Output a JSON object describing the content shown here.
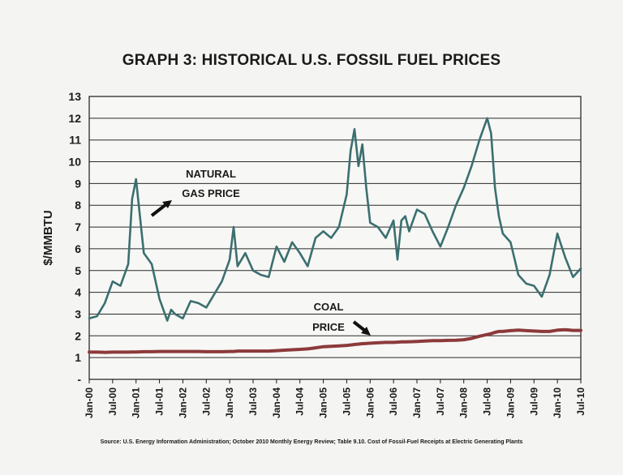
{
  "chart_data": {
    "type": "line",
    "title": "GRAPH 3: HISTORICAL U.S. FOSSIL FUEL PRICES",
    "ylabel": "$/MMBTU",
    "xlabel": "",
    "ylim": [
      0,
      13
    ],
    "y_tick_labels": [
      "-",
      "1",
      "2",
      "3",
      "4",
      "5",
      "6",
      "7",
      "8",
      "9",
      "10",
      "11",
      "12",
      "13"
    ],
    "x_tick_labels": [
      "Jan-00",
      "Jul-00",
      "Jan-01",
      "Jul-01",
      "Jan-02",
      "Jul-02",
      "Jan-03",
      "Jul-03",
      "Jan-04",
      "Jul-04",
      "Jan-05",
      "Jul-05",
      "Jan-06",
      "Jul-06",
      "Jan-07",
      "Jul-07",
      "Jan-08",
      "Jul-08",
      "Jan-09",
      "Jul-09",
      "Jan-10",
      "Jul-10"
    ],
    "grid": true,
    "x": [
      "Jan-00",
      "Mar-00",
      "May-00",
      "Jul-00",
      "Sep-00",
      "Nov-00",
      "Dec-00",
      "Jan-01",
      "Mar-01",
      "May-01",
      "Jul-01",
      "Sep-01",
      "Oct-01",
      "Nov-01",
      "Jan-02",
      "Mar-02",
      "May-02",
      "Jul-02",
      "Sep-02",
      "Nov-02",
      "Jan-03",
      "Feb-03",
      "Mar-03",
      "May-03",
      "Jul-03",
      "Sep-03",
      "Nov-03",
      "Jan-04",
      "Mar-04",
      "May-04",
      "Jul-04",
      "Sep-04",
      "Nov-04",
      "Jan-05",
      "Mar-05",
      "May-05",
      "Jul-05",
      "Aug-05",
      "Sep-05",
      "Oct-05",
      "Nov-05",
      "Dec-05",
      "Jan-06",
      "Mar-06",
      "May-06",
      "Jul-06",
      "Aug-06",
      "Sep-06",
      "Oct-06",
      "Nov-06",
      "Jan-07",
      "Mar-07",
      "May-07",
      "Jul-07",
      "Sep-07",
      "Nov-07",
      "Jan-08",
      "Mar-08",
      "May-08",
      "Jul-08",
      "Aug-08",
      "Sep-08",
      "Oct-08",
      "Nov-08",
      "Jan-09",
      "Mar-09",
      "May-09",
      "Jul-09",
      "Sep-09",
      "Nov-09",
      "Jan-10",
      "Mar-10",
      "May-10",
      "Jul-10"
    ],
    "series": [
      {
        "name": "NATURAL GAS PRICE",
        "color": "#3b6f6f",
        "values": [
          2.8,
          2.9,
          3.5,
          4.5,
          4.3,
          5.3,
          8.3,
          9.2,
          5.8,
          5.3,
          3.7,
          2.7,
          3.2,
          3.0,
          2.8,
          3.6,
          3.5,
          3.3,
          3.9,
          4.5,
          5.5,
          7.0,
          5.2,
          5.8,
          5.0,
          4.8,
          4.7,
          6.1,
          5.4,
          6.3,
          5.8,
          5.2,
          6.5,
          6.8,
          6.5,
          7.0,
          8.5,
          10.5,
          11.5,
          9.8,
          10.8,
          8.8,
          7.2,
          7.0,
          6.5,
          7.3,
          5.5,
          7.3,
          7.5,
          6.8,
          7.8,
          7.6,
          6.8,
          6.1,
          7.0,
          8.0,
          8.8,
          9.8,
          11.0,
          12.0,
          11.3,
          8.8,
          7.5,
          6.7,
          6.3,
          4.8,
          4.4,
          4.3,
          3.8,
          4.8,
          6.7,
          5.6,
          4.7,
          5.1
        ]
      },
      {
        "name": "COAL PRICE",
        "color": "#8c3a3a",
        "values": [
          1.25,
          1.25,
          1.24,
          1.25,
          1.25,
          1.25,
          1.26,
          1.26,
          1.27,
          1.27,
          1.28,
          1.28,
          1.28,
          1.28,
          1.28,
          1.28,
          1.28,
          1.27,
          1.27,
          1.27,
          1.28,
          1.28,
          1.3,
          1.3,
          1.3,
          1.3,
          1.3,
          1.32,
          1.34,
          1.36,
          1.38,
          1.4,
          1.45,
          1.5,
          1.52,
          1.54,
          1.56,
          1.58,
          1.6,
          1.62,
          1.64,
          1.65,
          1.66,
          1.68,
          1.7,
          1.7,
          1.71,
          1.72,
          1.72,
          1.73,
          1.74,
          1.76,
          1.78,
          1.78,
          1.79,
          1.8,
          1.82,
          1.88,
          1.98,
          2.06,
          2.1,
          2.16,
          2.2,
          2.2,
          2.24,
          2.26,
          2.24,
          2.22,
          2.2,
          2.2,
          2.26,
          2.28,
          2.25,
          2.25
        ]
      }
    ],
    "annotations": [
      {
        "text_lines": [
          "NATURAL",
          "GAS PRICE"
        ],
        "points_to": "NATURAL GAS PRICE"
      },
      {
        "text_lines": [
          "COAL",
          "PRICE"
        ],
        "points_to": "COAL PRICE"
      }
    ],
    "source": "Source: U.S. Energy Information Administration; October 2010 Monthly Energy Review; Table 9.10. Cost of Fossil-Fuel Receipts at Electric Generating Plants"
  }
}
